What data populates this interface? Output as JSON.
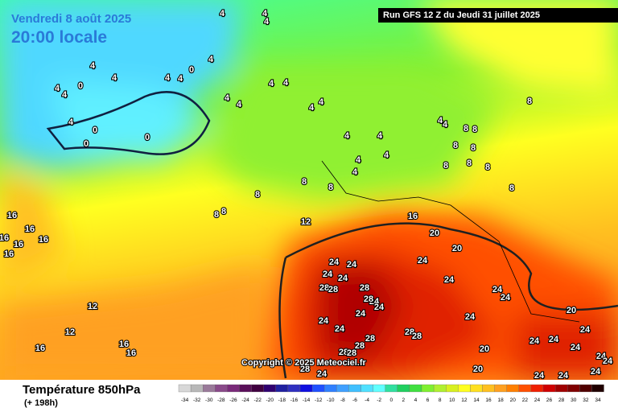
{
  "header": {
    "date": "Vendredi 8 août 2025",
    "time": "20:00 locale",
    "run": "Run GFS 12 Z du Jeudi 31 juillet 2025"
  },
  "copyright": "Copyright © 2025 Meteociel.fr",
  "footer": {
    "title": "Température 850hPa",
    "lead": "(+ 198h)"
  },
  "contour_labels": [
    4,
    4,
    4,
    4,
    4,
    4,
    4,
    4,
    0,
    0,
    4,
    4,
    0,
    0,
    0,
    4,
    4,
    4,
    4,
    4,
    4,
    4,
    4,
    4,
    4,
    4,
    4,
    4,
    4,
    8,
    8,
    8,
    8,
    8,
    8,
    8,
    8,
    8,
    8,
    8,
    8,
    8,
    8,
    12,
    16,
    16,
    16,
    16,
    16,
    16,
    16,
    20,
    20,
    24,
    24,
    24,
    24,
    24,
    24,
    24,
    24,
    24,
    24,
    24,
    24,
    24,
    24,
    24,
    24,
    24,
    24,
    24,
    24,
    24,
    24,
    24,
    24,
    28,
    28,
    28,
    28,
    28,
    28,
    28,
    28,
    28,
    28,
    28,
    20,
    20,
    20,
    12,
    12,
    16,
    16,
    16
  ],
  "scale": {
    "values": [
      -34,
      -32,
      -30,
      -28,
      -26,
      -24,
      -22,
      -20,
      -18,
      -16,
      -14,
      -12,
      -10,
      -8,
      -6,
      -4,
      -2,
      0,
      2,
      4,
      6,
      8,
      10,
      12,
      14,
      16,
      18,
      20,
      22,
      24,
      26,
      28,
      30,
      32,
      34
    ],
    "colors": [
      "#d8d8d8",
      "#b8b8b8",
      "#9a7a9a",
      "#8a4a8a",
      "#7a2a7a",
      "#5a105a",
      "#400040",
      "#300070",
      "#2020a0",
      "#3030c0",
      "#1010e0",
      "#2050ff",
      "#3080ff",
      "#40a0ff",
      "#40c0ff",
      "#50e0ff",
      "#60ffff",
      "#30e0a0",
      "#20d060",
      "#40e040",
      "#80f030",
      "#b0f030",
      "#d8f020",
      "#ffff20",
      "#ffe020",
      "#ffc020",
      "#ffa020",
      "#ff8000",
      "#ff5000",
      "#f02000",
      "#d00000",
      "#a00000",
      "#800000",
      "#500000",
      "#200000"
    ]
  }
}
